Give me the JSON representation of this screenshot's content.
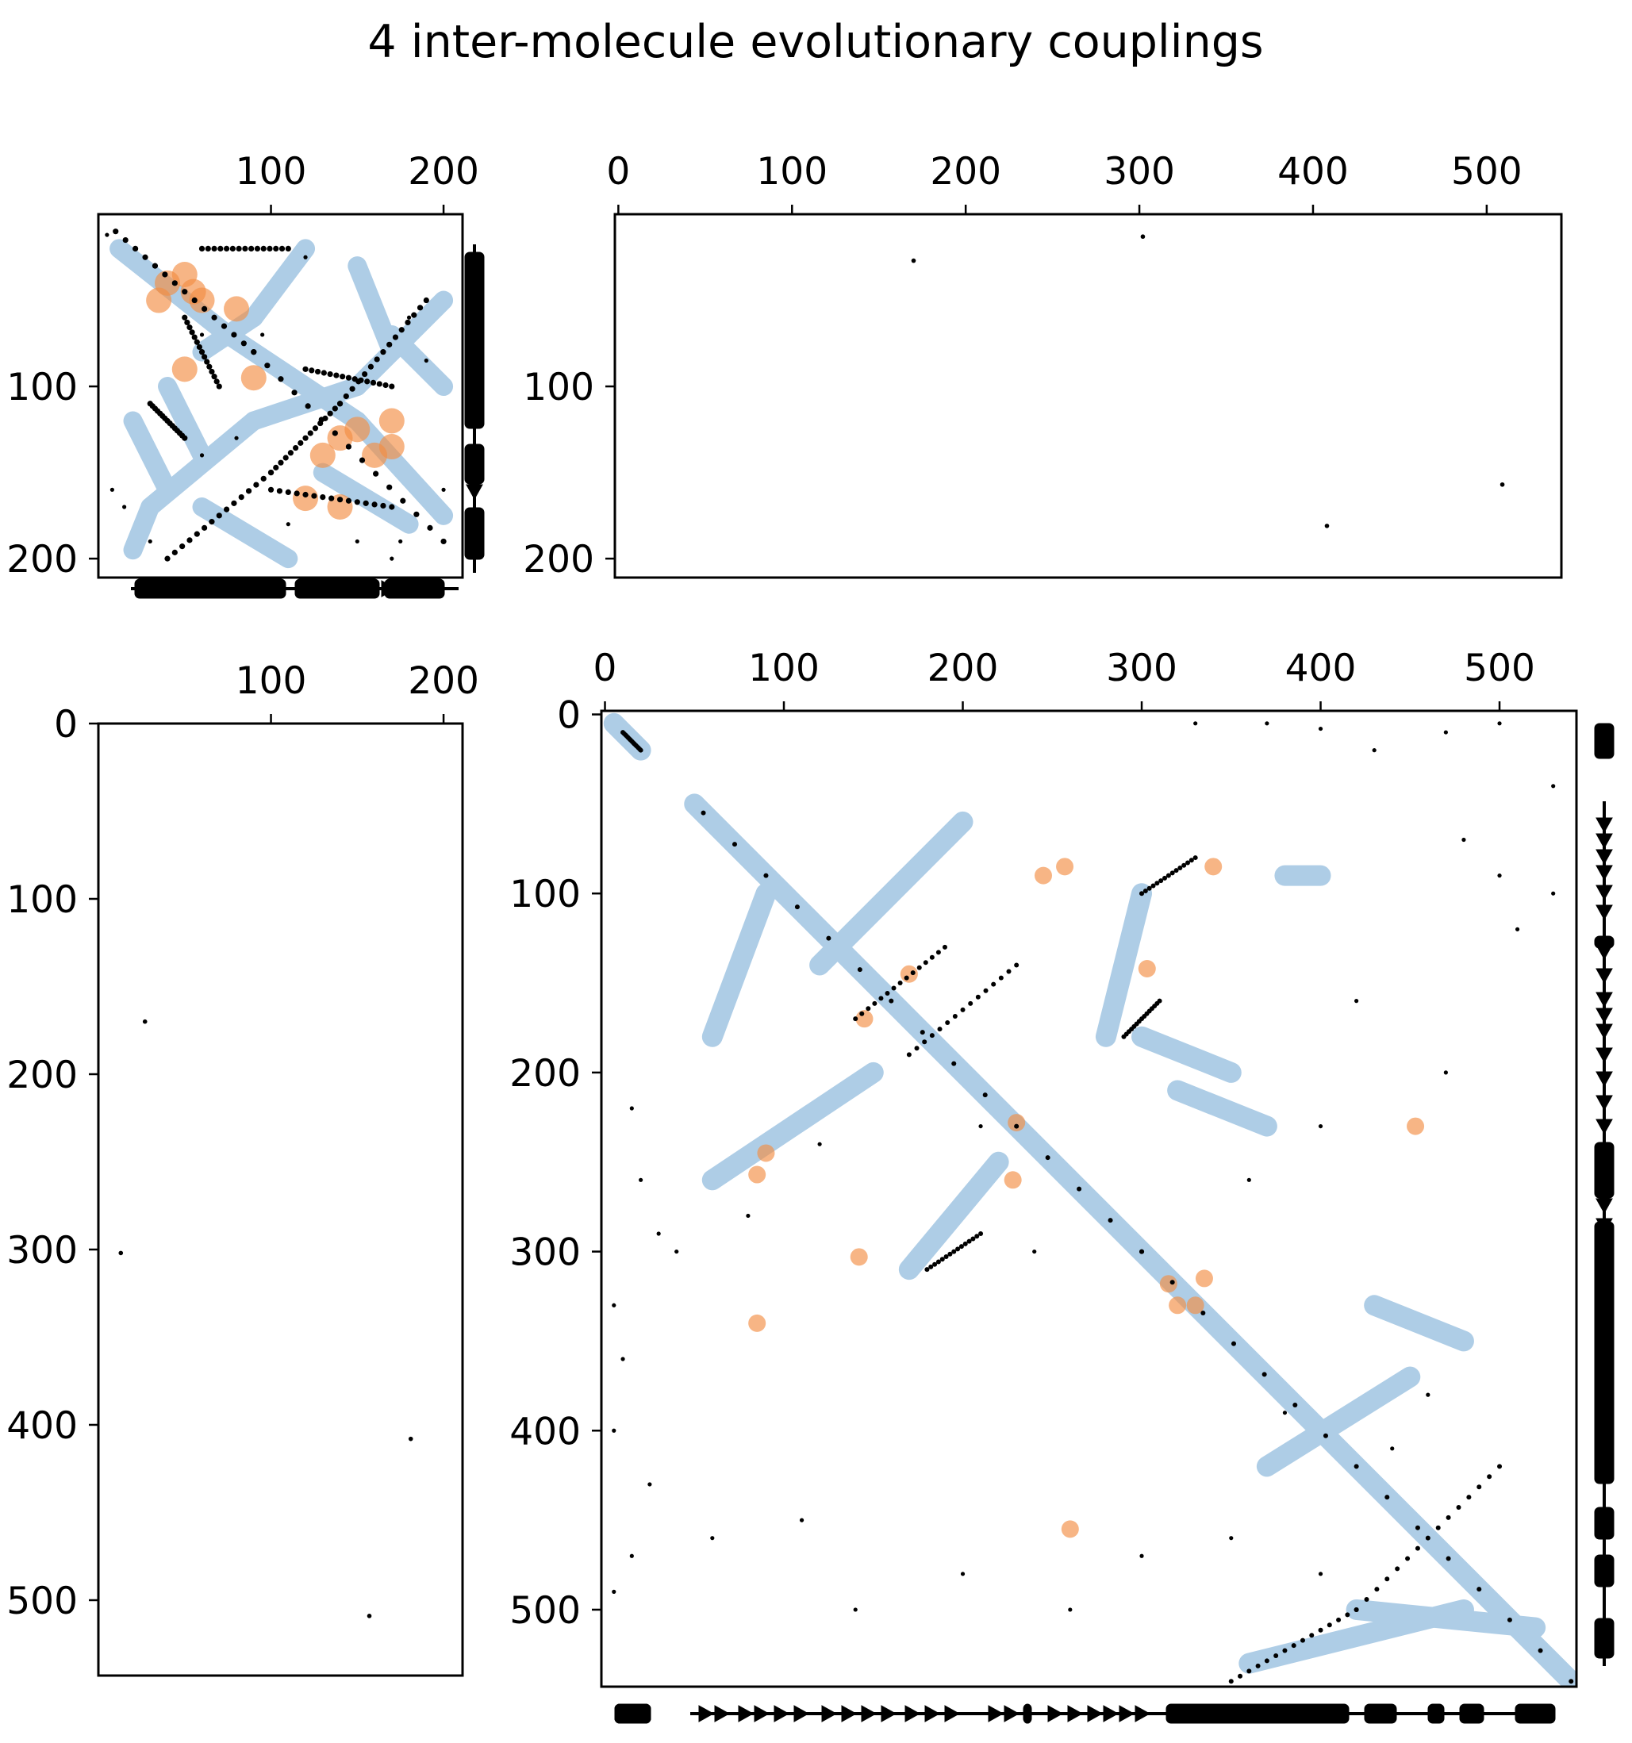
{
  "title": "4 inter-molecule evolutionary couplings",
  "colors": {
    "structure_contacts": "#aecde6",
    "inter_contacts": "#f28e43",
    "couplings": "#000000",
    "secondary_structure": "#000000"
  },
  "chart_data": [
    {
      "id": "A-A",
      "type": "scatter",
      "xlim": [
        0,
        211
      ],
      "ylim": [
        211,
        0
      ],
      "xticks": [
        100,
        200
      ],
      "yticks": [
        100,
        200
      ],
      "xtick_position": "top",
      "ytick_position": "left",
      "grid": false,
      "legend": "none",
      "series": [
        {
          "role": "structure_contacts",
          "color": "#aecde6",
          "segments": [
            [
              12,
              20,
              75,
              70
            ],
            [
              75,
              70,
              150,
              120
            ],
            [
              150,
              120,
              200,
              175
            ],
            [
              200,
              50,
              150,
              100
            ],
            [
              150,
              100,
              90,
              120
            ],
            [
              90,
              120,
              30,
              170
            ],
            [
              30,
              170,
              20,
              195
            ],
            [
              120,
              20,
              90,
              60
            ],
            [
              90,
              60,
              60,
              80
            ],
            [
              130,
              150,
              180,
              180
            ],
            [
              40,
              100,
              60,
              140
            ],
            [
              170,
              70,
              200,
              100
            ],
            [
              150,
              30,
              170,
              80
            ],
            [
              20,
              120,
              40,
              160
            ],
            [
              60,
              170,
              110,
              200
            ]
          ]
        },
        {
          "role": "inter_contacts",
          "color": "#f28e43",
          "points": [
            [
              40,
              40
            ],
            [
              50,
              35
            ],
            [
              55,
              45
            ],
            [
              60,
              50
            ],
            [
              35,
              50
            ],
            [
              80,
              55
            ],
            [
              50,
              90
            ],
            [
              140,
              130
            ],
            [
              150,
              125
            ],
            [
              130,
              140
            ],
            [
              170,
              120
            ],
            [
              170,
              135
            ],
            [
              120,
              165
            ],
            [
              140,
              170
            ],
            [
              160,
              140
            ],
            [
              90,
              95
            ]
          ]
        },
        {
          "role": "couplings",
          "color": "#000000",
          "segments": [
            [
              10,
              10,
              90,
              80
            ],
            [
              90,
              80,
              200,
              190
            ],
            [
              190,
              50,
              140,
              110
            ],
            [
              140,
              110,
              100,
              150
            ],
            [
              100,
              150,
              40,
              200
            ],
            [
              50,
              60,
              70,
              100
            ],
            [
              120,
              90,
              170,
              100
            ],
            [
              100,
              160,
              170,
              170
            ],
            [
              60,
              20,
              110,
              20
            ],
            [
              30,
              110,
              50,
              130
            ]
          ],
          "scatter": [
            [
              5,
              12
            ],
            [
              8,
              160
            ],
            [
              30,
              190
            ],
            [
              120,
              25
            ],
            [
              180,
              60
            ],
            [
              190,
              85
            ],
            [
              110,
              180
            ],
            [
              150,
              190
            ],
            [
              170,
              200
            ],
            [
              15,
              170
            ],
            [
              60,
              140
            ],
            [
              80,
              130
            ],
            [
              95,
              70
            ],
            [
              60,
              70
            ],
            [
              175,
              190
            ],
            [
              200,
              160
            ]
          ]
        }
      ]
    },
    {
      "id": "A-B",
      "type": "scatter",
      "xlim": [
        -2,
        543
      ],
      "ylim": [
        211,
        0
      ],
      "xticks": [
        0,
        100,
        200,
        300,
        400,
        500
      ],
      "yticks": [
        100,
        200
      ],
      "xtick_position": "top",
      "ytick_position": "left",
      "grid": false,
      "legend": "none",
      "series": [
        {
          "role": "couplings",
          "color": "#000000",
          "points": [
            [
              302,
              13
            ],
            [
              170,
              27
            ],
            [
              408,
              181
            ],
            [
              509,
              157
            ]
          ]
        }
      ]
    },
    {
      "id": "B-A",
      "type": "scatter",
      "xlim": [
        0,
        211
      ],
      "ylim": [
        543,
        0
      ],
      "xticks": [
        100,
        200
      ],
      "yticks": [
        0,
        100,
        200,
        300,
        400,
        500
      ],
      "xtick_position": "top",
      "ytick_position": "left",
      "grid": false,
      "legend": "none",
      "series": [
        {
          "role": "couplings",
          "color": "#000000",
          "points": [
            [
              27,
              170
            ],
            [
              13,
              302
            ],
            [
              181,
              408
            ],
            [
              157,
              509
            ]
          ]
        }
      ]
    },
    {
      "id": "B-B",
      "type": "scatter",
      "xlim": [
        -2,
        543
      ],
      "ylim": [
        543,
        -2
      ],
      "xticks": [
        0,
        100,
        200,
        300,
        400,
        500
      ],
      "yticks": [
        0,
        100,
        200,
        300,
        400,
        500
      ],
      "xtick_position": "top",
      "ytick_position": "left",
      "grid": false,
      "legend": "none",
      "series": [
        {
          "role": "structure_contacts",
          "color": "#aecde6",
          "segments": [
            [
              5,
              5,
              20,
              20
            ],
            [
              50,
              50,
              540,
              540
            ],
            [
              120,
              140,
              200,
              60
            ],
            [
              150,
              200,
              60,
              260
            ],
            [
              370,
              420,
              450,
              370
            ],
            [
              480,
              500,
              360,
              530
            ],
            [
              300,
              100,
              280,
              180
            ],
            [
              60,
              180,
              90,
              100
            ],
            [
              170,
              310,
              220,
              250
            ],
            [
              300,
              180,
              350,
              200
            ],
            [
              380,
              90,
              400,
              90
            ],
            [
              430,
              330,
              480,
              350
            ],
            [
              320,
              210,
              370,
              230
            ],
            [
              420,
              500,
              520,
              510
            ]
          ]
        },
        {
          "role": "inter_contacts",
          "color": "#f28e43",
          "points": [
            [
              245,
              90
            ],
            [
              257,
              85
            ],
            [
              303,
              142
            ],
            [
              90,
              245
            ],
            [
              85,
              257
            ],
            [
              142,
              303
            ],
            [
              315,
              318
            ],
            [
              320,
              330
            ],
            [
              335,
              315
            ],
            [
              330,
              330
            ],
            [
              230,
              228
            ],
            [
              453,
              230
            ],
            [
              228,
              260
            ],
            [
              260,
              455
            ],
            [
              340,
              85
            ],
            [
              85,
              340
            ],
            [
              145,
              170
            ],
            [
              170,
              145
            ]
          ]
        },
        {
          "role": "couplings",
          "color": "#000000",
          "segments": [
            [
              10,
              10,
              20,
              20
            ],
            [
              55,
              55,
              300,
              300
            ],
            [
              300,
              300,
              540,
              540
            ],
            [
              140,
              170,
              190,
              130
            ],
            [
              170,
              190,
              230,
              140
            ],
            [
              500,
              420,
              420,
              500
            ],
            [
              420,
              500,
              350,
              540
            ],
            [
              180,
              310,
              210,
              290
            ],
            [
              290,
              180,
              310,
              160
            ],
            [
              300,
              100,
              330,
              80
            ]
          ],
          "scatter": [
            [
              330,
              5
            ],
            [
              370,
              5
            ],
            [
              400,
              8
            ],
            [
              430,
              20
            ],
            [
              470,
              10
            ],
            [
              500,
              5
            ],
            [
              530,
              40
            ],
            [
              480,
              70
            ],
            [
              500,
              90
            ],
            [
              530,
              100
            ],
            [
              510,
              120
            ],
            [
              420,
              160
            ],
            [
              470,
              200
            ],
            [
              400,
              230
            ],
            [
              360,
              260
            ],
            [
              120,
              240
            ],
            [
              80,
              280
            ],
            [
              30,
              290
            ],
            [
              20,
              260
            ],
            [
              15,
              220
            ],
            [
              40,
              300
            ],
            [
              5,
              330
            ],
            [
              10,
              360
            ],
            [
              5,
              400
            ],
            [
              25,
              430
            ],
            [
              15,
              470
            ],
            [
              5,
              490
            ],
            [
              60,
              460
            ],
            [
              110,
              450
            ],
            [
              140,
              500
            ],
            [
              200,
              480
            ],
            [
              260,
              500
            ],
            [
              300,
              470
            ],
            [
              350,
              460
            ],
            [
              400,
              480
            ],
            [
              210,
              230
            ],
            [
              240,
              300
            ],
            [
              420,
              420
            ],
            [
              440,
              410
            ],
            [
              380,
              390
            ],
            [
              460,
              380
            ]
          ]
        }
      ]
    }
  ]
}
